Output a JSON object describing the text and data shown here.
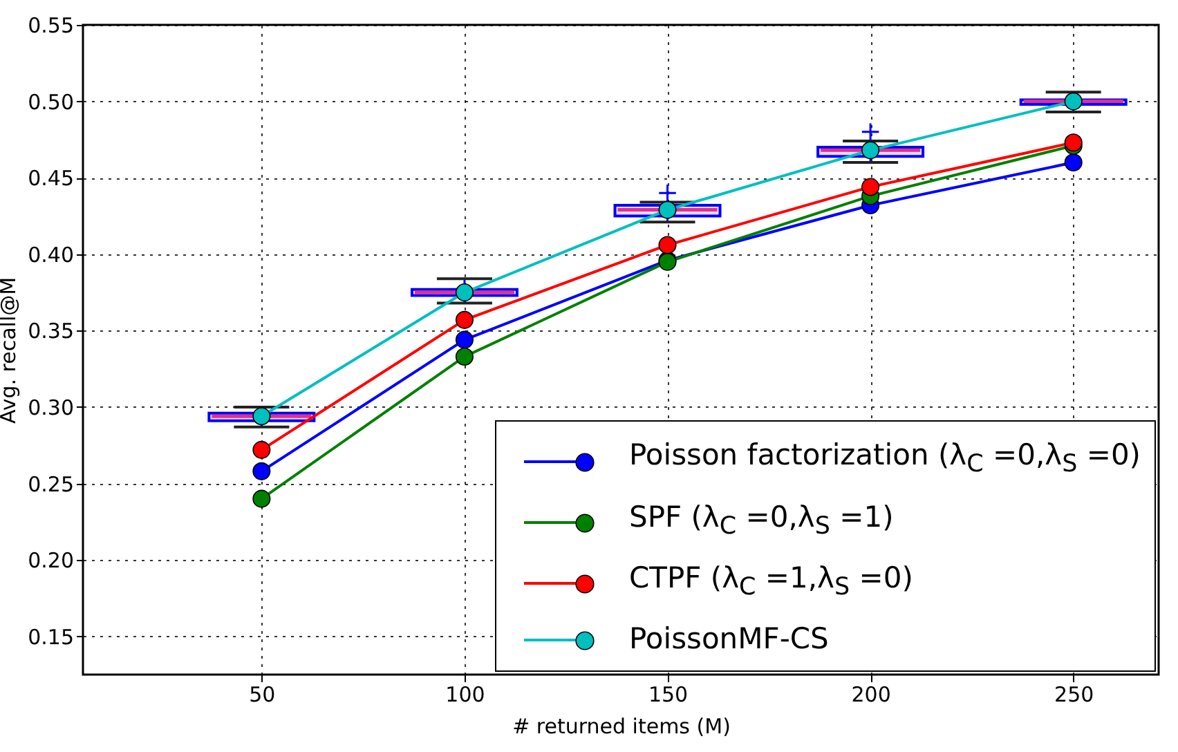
{
  "chart_data": {
    "type": "line",
    "xlabel": "# returned items (M)",
    "ylabel": "Avg. recall@M",
    "x": [
      50,
      100,
      150,
      200,
      250
    ],
    "xlim": [
      6,
      271
    ],
    "xticks": [
      50,
      100,
      150,
      200,
      250
    ],
    "ylim": [
      0.125,
      0.55
    ],
    "yticks": [
      0.15,
      {
        "value": 0.2,
        "label": "0.20"
      },
      0.25,
      {
        "value": 0.3,
        "label": "0.30"
      },
      0.35,
      {
        "value": 0.4,
        "label": "0.40"
      },
      0.45,
      {
        "value": 0.5,
        "label": "0.50"
      },
      0.55
    ],
    "grid": true,
    "legend": "bottom right",
    "marker": "circle",
    "line_style": "solid",
    "series": [
      {
        "name": "Poisson factorization (λ$_{C}$ =0,λ$_{S}$ =0)",
        "color": "#0000ff",
        "values": [
          0.258,
          0.344,
          0.396,
          0.432,
          0.46
        ]
      },
      {
        "name": "SPF (λ$_{C}$ =0,λ$_{S}$ =1)",
        "color": "#008000",
        "values": [
          0.24,
          0.333,
          0.395,
          0.438,
          0.471
        ]
      },
      {
        "name": "CTPF (λ$_{C}$ =1,λ$_{S}$ =0)",
        "color": "#ff0000",
        "values": [
          0.272,
          0.357,
          0.406,
          0.444,
          0.473
        ]
      },
      {
        "name": "PoissonMF-CS",
        "color": "#00bfbf",
        "values": [
          0.294,
          0.375,
          0.429,
          0.468,
          0.5
        ]
      },
      {
        "type": "box",
        "color": "#0000ff",
        "x": [
          50,
          100,
          150,
          200,
          250
        ],
        "boxes": [
          {
            "low": 0.287,
            "q1": 0.291,
            "median": 0.294,
            "q3": 0.296,
            "high": 0.3
          },
          {
            "low": 0.368,
            "q1": 0.373,
            "median": 0.375,
            "q3": 0.377,
            "high": 0.384
          },
          {
            "low": 0.421,
            "q1": 0.425,
            "median": 0.429,
            "q3": 0.432,
            "high": 0.434,
            "outliers": [
              0.44
            ]
          },
          {
            "low": 0.46,
            "q1": 0.464,
            "median": 0.468,
            "q3": 0.47,
            "high": 0.474,
            "outliers": [
              0.48
            ]
          },
          {
            "low": 0.493,
            "q1": 0.498,
            "median": 0.5,
            "q3": 0.501,
            "high": 0.506
          }
        ]
      }
    ]
  }
}
